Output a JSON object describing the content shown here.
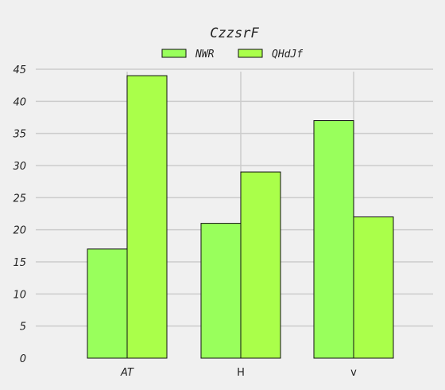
{
  "chart_data": {
    "type": "bar",
    "title": "CzzsrF",
    "categories": [
      "AT",
      "H",
      "v"
    ],
    "series": [
      {
        "name": "NWR",
        "values": [
          17,
          21,
          37
        ],
        "color": "#99ff5c"
      },
      {
        "name": "QHdJf",
        "values": [
          44,
          29,
          22
        ],
        "color": "#aaff4a"
      }
    ],
    "xlabel": "",
    "ylabel": "",
    "ylim": [
      0,
      45
    ],
    "yticks": [
      0,
      5,
      10,
      15,
      20,
      25,
      30,
      35,
      40,
      45
    ],
    "grid": true,
    "legend_position": "top-center",
    "background_color": "#f0f0f0",
    "grid_color": "#cccccc",
    "bar_edge_color": "#111111"
  }
}
